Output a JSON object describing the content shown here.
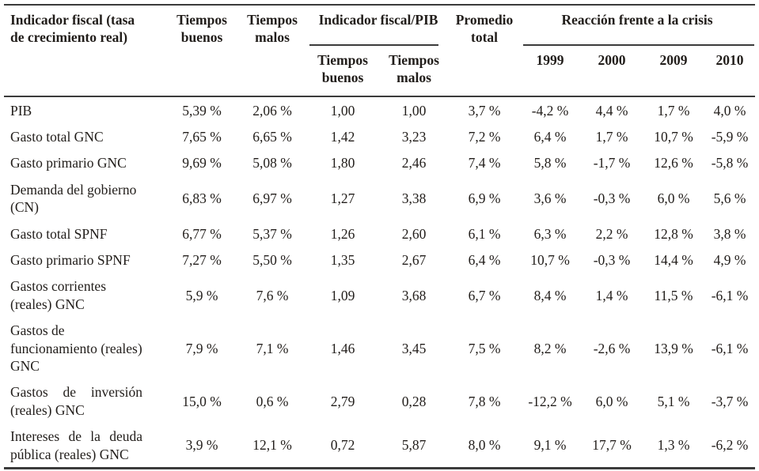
{
  "table": {
    "header": {
      "indicator": "Indicador fiscal (tasa de crecimiento real)",
      "good_times": "Tiempos buenos",
      "bad_times": "Tiempos malos",
      "ratio_group": "Indicador fiscal/PIB",
      "ratio_good": "Tiempos buenos",
      "ratio_bad": "Tiempos malos",
      "average": "Promedio total",
      "crisis_group": "Reacción frente a la crisis",
      "years": [
        "1999",
        "2000",
        "2009",
        "2010"
      ]
    },
    "rows": [
      {
        "label": "PIB",
        "values": [
          "5,39 %",
          "2,06 %",
          "1,00",
          "1,00",
          "3,7 %",
          "-4,2 %",
          "4,4 %",
          "1,7 %",
          "4,0 %"
        ]
      },
      {
        "label": "Gasto total GNC",
        "values": [
          "7,65 %",
          "6,65 %",
          "1,42",
          "3,23",
          "7,2 %",
          "6,4 %",
          "1,7 %",
          "10,7 %",
          "-5,9 %"
        ]
      },
      {
        "label": "Gasto primario GNC",
        "values": [
          "9,69 %",
          "5,08 %",
          "1,80",
          "2,46",
          "7,4 %",
          "5,8 %",
          "-1,7 %",
          "12,6 %",
          "-5,8 %"
        ]
      },
      {
        "label": "Demanda del gobierno (CN)",
        "values": [
          "6,83 %",
          "6,97 %",
          "1,27",
          "3,38",
          "6,9 %",
          "3,6 %",
          "-0,3 %",
          "6,0 %",
          "5,6 %"
        ]
      },
      {
        "label": "Gasto total SPNF",
        "values": [
          "6,77 %",
          "5,37 %",
          "1,26",
          "2,60",
          "6,1 %",
          "6,3 %",
          "2,2 %",
          "12,8 %",
          "3,8 %"
        ]
      },
      {
        "label": "Gasto primario SPNF",
        "values": [
          "7,27 %",
          "5,50 %",
          "1,35",
          "2,67",
          "6,4 %",
          "10,7 %",
          "-0,3 %",
          "14,4 %",
          "4,9 %"
        ]
      },
      {
        "label": "Gastos corrientes (reales) GNC",
        "values": [
          "5,9 %",
          "7,6 %",
          "1,09",
          "3,68",
          "6,7 %",
          "8,4 %",
          "1,4 %",
          "11,5 %",
          "-6,1 %"
        ]
      },
      {
        "label": "Gastos de funcionamiento (reales) GNC",
        "values": [
          "7,9 %",
          "7,1 %",
          "1,46",
          "3,45",
          "7,5 %",
          "8,2 %",
          "-2,6 %",
          "13,9 %",
          "-6,1 %"
        ]
      },
      {
        "label": "Gastos de inversión (reales) GNC",
        "values": [
          "15,0 %",
          "0,6 %",
          "2,79",
          "0,28",
          "7,8 %",
          "-12,2 %",
          "6,0 %",
          "5,1 %",
          "-3,7 %"
        ]
      },
      {
        "label": "Intereses de la deuda pública (reales) GNC",
        "values": [
          "3,9 %",
          "12,1 %",
          "0,72",
          "5,87",
          "8,0 %",
          "9,1 %",
          "17,7 %",
          "1,3 %",
          "-6,2 %"
        ]
      }
    ]
  },
  "colors": {
    "text": "#211d1a",
    "rule": "#3b3b3b",
    "background": "#ffffff"
  }
}
